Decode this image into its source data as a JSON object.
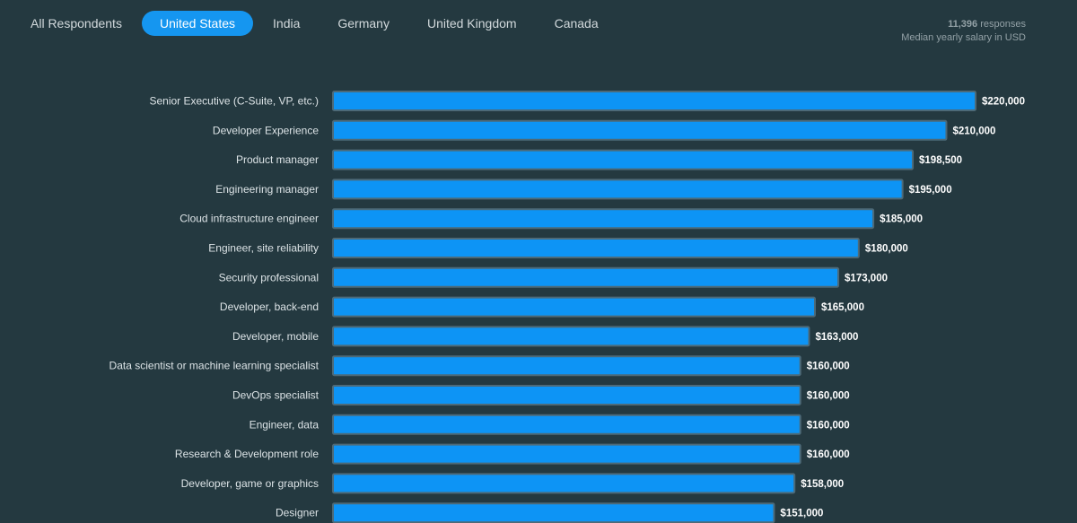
{
  "tabs": [
    {
      "label": "All Respondents",
      "active": false
    },
    {
      "label": "United States",
      "active": true
    },
    {
      "label": "India",
      "active": false
    },
    {
      "label": "Germany",
      "active": false
    },
    {
      "label": "United Kingdom",
      "active": false
    },
    {
      "label": "Canada",
      "active": false
    }
  ],
  "summary": {
    "response_count": "11,396",
    "response_suffix": "responses",
    "subtitle": "Median yearly salary in USD"
  },
  "colors": {
    "background": "#243940",
    "bar": "#0d94f5",
    "active_tab": "#1596f0"
  },
  "chart_data": {
    "type": "bar",
    "orientation": "horizontal",
    "title": "",
    "xlabel": "",
    "ylabel": "",
    "grid": false,
    "xlim": [
      0,
      220000
    ],
    "categories": [
      "Senior Executive (C-Suite, VP, etc.)",
      "Developer Experience",
      "Product manager",
      "Engineering manager",
      "Cloud infrastructure engineer",
      "Engineer, site reliability",
      "Security professional",
      "Developer, back-end",
      "Developer, mobile",
      "Data scientist or machine learning specialist",
      "DevOps specialist",
      "Engineer, data",
      "Research & Development role",
      "Developer, game or graphics",
      "Designer"
    ],
    "values": [
      220000,
      210000,
      198500,
      195000,
      185000,
      180000,
      173000,
      165000,
      163000,
      160000,
      160000,
      160000,
      160000,
      158000,
      151000
    ],
    "value_labels": [
      "$220,000",
      "$210,000",
      "$198,500",
      "$195,000",
      "$185,000",
      "$180,000",
      "$173,000",
      "$165,000",
      "$163,000",
      "$160,000",
      "$160,000",
      "$160,000",
      "$160,000",
      "$158,000",
      "$151,000"
    ]
  }
}
